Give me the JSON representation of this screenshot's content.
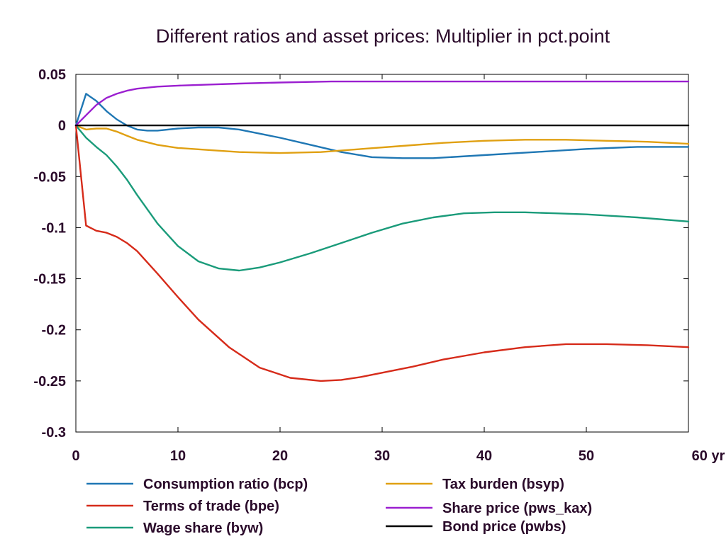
{
  "chart_data": {
    "type": "line",
    "title": "Different ratios and asset prices: Multiplier in pct.point",
    "xlabel": "",
    "ylabel": "",
    "xlim": [
      0,
      60
    ],
    "ylim": [
      -0.3,
      0.05
    ],
    "x_ticks": [
      0,
      10,
      20,
      30,
      40,
      50,
      60
    ],
    "x_tick_labels": [
      "0",
      "10",
      "20",
      "30",
      "40",
      "50",
      "60 yr"
    ],
    "y_ticks": [
      0.05,
      0,
      -0.05,
      -0.1,
      -0.15,
      -0.2,
      -0.25,
      -0.3
    ],
    "y_tick_labels": [
      "0.05",
      "0",
      "-0.05",
      "-0.1",
      "-0.15",
      "-0.2",
      "-0.25",
      "-0.3"
    ],
    "grid": false,
    "legend_position": "bottom",
    "series": [
      {
        "name": "Consumption ratio (bcp)",
        "color": "#1f77b4",
        "x": [
          0,
          1,
          2,
          3,
          4,
          5,
          6,
          7,
          8,
          10,
          12,
          14,
          16,
          18,
          20,
          23,
          26,
          29,
          32,
          35,
          40,
          45,
          50,
          55,
          60
        ],
        "y": [
          0,
          0.031,
          0.024,
          0.014,
          0.006,
          0.0,
          -0.004,
          -0.005,
          -0.005,
          -0.003,
          -0.002,
          -0.002,
          -0.004,
          -0.008,
          -0.012,
          -0.019,
          -0.026,
          -0.031,
          -0.032,
          -0.032,
          -0.029,
          -0.026,
          -0.023,
          -0.021,
          -0.021
        ]
      },
      {
        "name": "Terms of trade (bpe)",
        "color": "#d62b1a",
        "x": [
          0,
          1,
          2,
          3,
          4,
          5,
          6,
          8,
          10,
          12,
          15,
          18,
          21,
          24,
          26,
          28,
          30,
          33,
          36,
          40,
          44,
          48,
          52,
          56,
          60
        ],
        "y": [
          0,
          -0.098,
          -0.103,
          -0.105,
          -0.109,
          -0.115,
          -0.123,
          -0.145,
          -0.168,
          -0.19,
          -0.217,
          -0.237,
          -0.247,
          -0.25,
          -0.249,
          -0.246,
          -0.242,
          -0.236,
          -0.229,
          -0.222,
          -0.217,
          -0.214,
          -0.214,
          -0.215,
          -0.217
        ]
      },
      {
        "name": "Wage share (byw)",
        "color": "#1a9b7a",
        "x": [
          0,
          1,
          2,
          3,
          4,
          5,
          6,
          8,
          10,
          12,
          14,
          16,
          18,
          20,
          23,
          26,
          29,
          32,
          35,
          38,
          41,
          44,
          47,
          50,
          55,
          60
        ],
        "y": [
          0,
          -0.012,
          -0.021,
          -0.029,
          -0.04,
          -0.053,
          -0.068,
          -0.096,
          -0.118,
          -0.133,
          -0.14,
          -0.142,
          -0.139,
          -0.134,
          -0.125,
          -0.115,
          -0.105,
          -0.096,
          -0.09,
          -0.086,
          -0.085,
          -0.085,
          -0.086,
          -0.087,
          -0.09,
          -0.094
        ]
      },
      {
        "name": "Tax burden (bsyp)",
        "color": "#e0a012",
        "x": [
          0,
          1,
          2,
          3,
          4,
          5,
          6,
          8,
          10,
          13,
          16,
          20,
          24,
          28,
          32,
          36,
          40,
          44,
          48,
          52,
          56,
          60
        ],
        "y": [
          0,
          -0.004,
          -0.003,
          -0.003,
          -0.006,
          -0.01,
          -0.014,
          -0.019,
          -0.022,
          -0.024,
          -0.026,
          -0.027,
          -0.026,
          -0.023,
          -0.02,
          -0.017,
          -0.015,
          -0.014,
          -0.014,
          -0.015,
          -0.016,
          -0.018
        ]
      },
      {
        "name": "Share price (pws_kax)",
        "color": "#9b1fd0",
        "x": [
          0,
          1,
          2,
          3,
          4,
          5,
          6,
          8,
          10,
          13,
          16,
          20,
          25,
          30,
          40,
          50,
          60
        ],
        "y": [
          0,
          0.01,
          0.02,
          0.027,
          0.031,
          0.034,
          0.036,
          0.038,
          0.039,
          0.04,
          0.041,
          0.042,
          0.043,
          0.043,
          0.043,
          0.043,
          0.043
        ]
      },
      {
        "name": "Bond price (pwbs)",
        "color": "#000000",
        "x": [
          0,
          60
        ],
        "y": [
          0,
          0
        ]
      }
    ]
  }
}
